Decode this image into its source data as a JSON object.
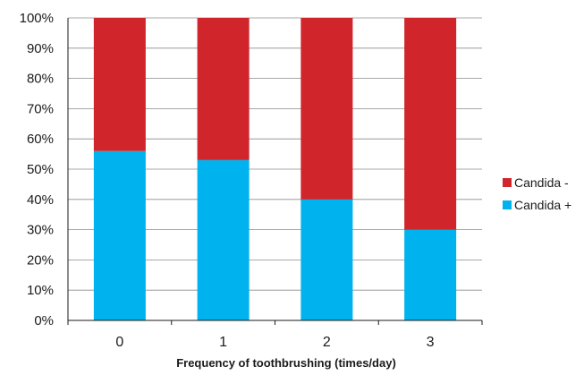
{
  "chart_data": {
    "type": "bar",
    "stacked": true,
    "categories": [
      "0",
      "1",
      "2",
      "3"
    ],
    "series": [
      {
        "name": "Candida +",
        "color": "#00b3ee",
        "values": [
          56,
          53,
          40,
          30
        ]
      },
      {
        "name": "Candida -",
        "color": "#d0252a",
        "values": [
          44,
          47,
          60,
          70
        ]
      }
    ],
    "xlabel": "Frequency of toothbrushing (times/day)",
    "ylabel": "",
    "ylim": [
      0,
      100
    ],
    "yticks": [
      "0%",
      "10%",
      "20%",
      "30%",
      "40%",
      "50%",
      "60%",
      "70%",
      "80%",
      "90%",
      "100%"
    ],
    "grid": true,
    "legend": {
      "placement": "right",
      "entries": [
        "Candida -",
        "Candida +"
      ]
    }
  }
}
